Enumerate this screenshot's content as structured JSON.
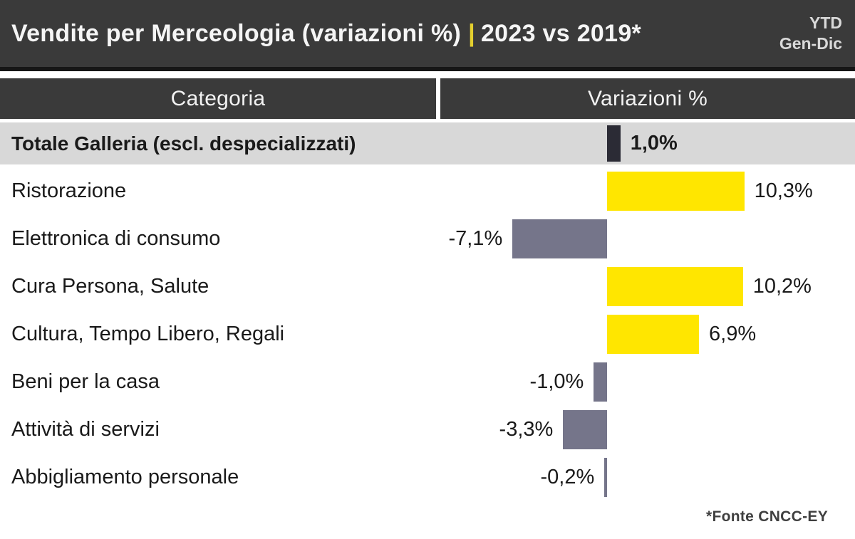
{
  "header": {
    "title": "Vendite per Merceologia (variazioni %)",
    "separator": "|",
    "comparison": "2023 vs 2019*",
    "period_line1": "YTD",
    "period_line2": "Gen-Dic"
  },
  "table_headers": {
    "category": "Categoria",
    "variation": "Variazioni %"
  },
  "chart_data": {
    "type": "bar",
    "orientation": "horizontal",
    "title": "Vendite per Merceologia (variazioni %) 2023 vs 2019 YTD Gen-Dic",
    "xlabel": "Variazioni %",
    "ylabel": "Categoria",
    "xlim": [
      -12.5,
      18.6
    ],
    "grid": false,
    "legend": "none",
    "categories": [
      "Totale Galleria (escl. despecializzati)",
      "Ristorazione",
      "Elettronica di consumo",
      "Cura Persona, Salute",
      "Cultura, Tempo Libero, Regali",
      "Beni per la casa",
      "Attività di servizi",
      "Abbigliamento personale"
    ],
    "values": [
      1.0,
      10.3,
      -7.1,
      10.2,
      6.9,
      -1.0,
      -3.3,
      -0.2
    ],
    "value_labels": [
      "1,0%",
      "10,3%",
      "-7,1%",
      "10,2%",
      "6,9%",
      "-1,0%",
      "-3,3%",
      "-0,2%"
    ],
    "emphasis_row": 0,
    "colors": {
      "positive_bar": "#ffe600",
      "negative_bar": "#75758a",
      "total_bar": "#2b2b35",
      "emphasis_row_bg": "#d8d8d8",
      "header_bg": "#3a3a3a",
      "accent": "#ffe600"
    }
  },
  "footer": {
    "source": "*Fonte CNCC-EY"
  }
}
